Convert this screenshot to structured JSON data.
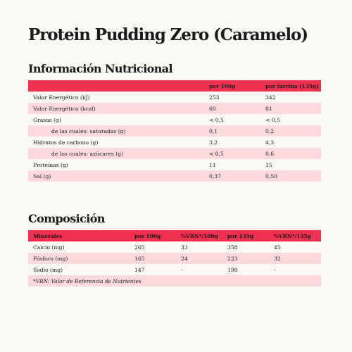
{
  "title": "Protein Pudding Zero (Caramelo)",
  "nutrition": {
    "heading": "Información Nutricional",
    "columns": [
      "",
      "por 100g",
      "por tarrina (135g)"
    ],
    "rows": [
      {
        "label": "Valor Energético (kJ)",
        "per100": "253",
        "perTub": "342"
      },
      {
        "label": "Valor Energético (kcal)",
        "per100": "60",
        "perTub": "81"
      },
      {
        "label": "Grasas (g)",
        "per100": "< 0,5",
        "perTub": "< 0,5"
      },
      {
        "label": "de las cuales: saturadas (g)",
        "per100": "0,1",
        "perTub": "0,2"
      },
      {
        "label": "Hidratos de carbono (g)",
        "per100": "3,2",
        "perTub": "4,3"
      },
      {
        "label": "de los cuales: azúcares (g)",
        "per100": "< 0,5",
        "perTub": "0,6"
      },
      {
        "label": "Proteínas (g)",
        "per100": "11",
        "perTub": "15"
      },
      {
        "label": "Sal (g)",
        "per100": "0,37",
        "perTub": "0,50"
      }
    ]
  },
  "composition": {
    "heading": "Composición",
    "columns": [
      "Minerales",
      "por 100g",
      "%VRN*/100g",
      "por 135g",
      "%VRN*/135g"
    ],
    "rows": [
      {
        "mineral": "Calcio (mg)",
        "per100": "265",
        "vrn100": "33",
        "per135": "358",
        "vrn135": "45"
      },
      {
        "mineral": "Fósforo (mg)",
        "per100": "165",
        "vrn100": "24",
        "per135": "223",
        "vrn135": "32"
      },
      {
        "mineral": "Sodio (mg)",
        "per100": "147",
        "vrn100": "-",
        "per135": "198",
        "vrn135": "-"
      }
    ],
    "footnote": "*VRN: Valor de Referencia de Nutrientes"
  }
}
